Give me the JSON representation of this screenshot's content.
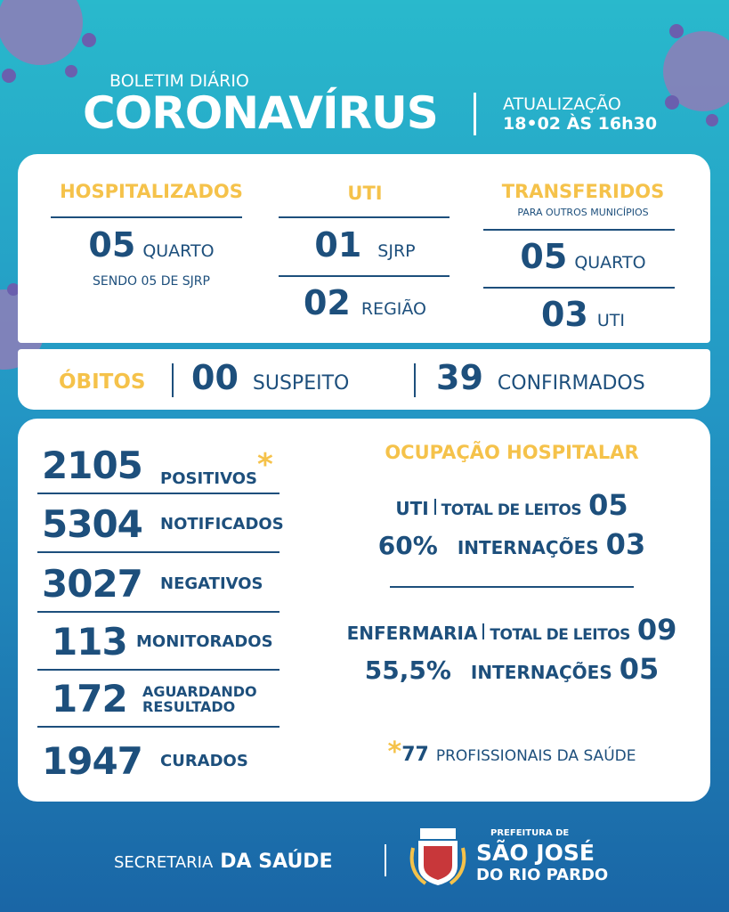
{
  "header": {
    "kicker": "BOLETIM DIÁRIO",
    "title": "CORONAVÍRUS",
    "update_label": "ATUALIZAÇÃO",
    "update_time": "18•02 ÀS 16h30"
  },
  "hospital": {
    "hospitalizados": {
      "title": "HOSPITALIZADOS",
      "number": "05",
      "unit": "QUARTO",
      "note": "SENDO 05 DE SJRP"
    },
    "uti": {
      "title": "UTI",
      "rows": [
        {
          "number": "01",
          "unit": "SJRP"
        },
        {
          "number": "02",
          "unit": "REGIÃO"
        }
      ]
    },
    "transferidos": {
      "title": "TRANSFERIDOS",
      "subtitle": "PARA OUTROS MUNICÍPIOS",
      "rows": [
        {
          "number": "05",
          "unit": "QUARTO"
        },
        {
          "number": "03",
          "unit": "UTI"
        }
      ]
    }
  },
  "obitos": {
    "label": "ÓBITOS",
    "items": [
      {
        "number": "00",
        "unit": "SUSPEITO"
      },
      {
        "number": "39",
        "unit": "CONFIRMADOS"
      }
    ]
  },
  "cases": [
    {
      "number": "2105",
      "label": "POSITIVOS",
      "mark": "*"
    },
    {
      "number": "5304",
      "label": "NOTIFICADOS"
    },
    {
      "number": "3027",
      "label": "NEGATIVOS"
    },
    {
      "number": "113",
      "label": "MONITORADOS"
    },
    {
      "number": "172",
      "label_lines": [
        "AGUARDANDO",
        "RESULTADO"
      ]
    },
    {
      "number": "1947",
      "label": "CURADOS"
    }
  ],
  "occupancy": {
    "title": "OCUPAÇÃO HOSPITALAR",
    "wards": [
      {
        "name": "UTI",
        "beds_label": "TOTAL DE LEITOS",
        "beds": "05",
        "rate": "60%",
        "admissions_label": "INTERNAÇÕES",
        "admissions": "03"
      },
      {
        "name": "ENFERMARIA",
        "beds_label": "TOTAL DE LEITOS",
        "beds": "09",
        "rate": "55,5%",
        "admissions_label": "INTERNAÇÕES",
        "admissions": "05"
      }
    ],
    "footnote": {
      "mark": "*",
      "number": "77",
      "text": "PROFISSIONAIS DA SAÚDE"
    }
  },
  "footer": {
    "department_prefix": "SECRETARIA",
    "department": "DA SAÚDE",
    "city_prefix": "PREFEITURA DE",
    "city_line1": "SÃO JOSÉ",
    "city_line2": "DO RIO PARDO"
  }
}
